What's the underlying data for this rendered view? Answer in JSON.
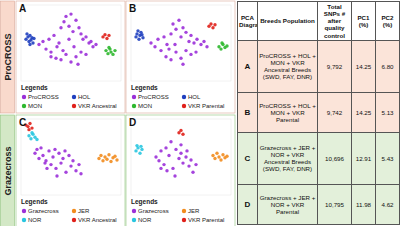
{
  "chart_data": [
    {
      "type": "scatter",
      "title": "A",
      "legend_title": "Legends",
      "legend": "bottom",
      "tick_labels": false,
      "marker": "circle",
      "xlim": [
        0,
        100
      ],
      "ylim": [
        0,
        100
      ],
      "series": [
        {
          "name": "ProCROSS",
          "color": "#9b30d9",
          "x": [
            18,
            22,
            25,
            28,
            30,
            33,
            36,
            40,
            43,
            45,
            48,
            50,
            52,
            55,
            58,
            60,
            62,
            65,
            68,
            70,
            72,
            75,
            35,
            40,
            45,
            50,
            55,
            42,
            38,
            60,
            65,
            30,
            48,
            53,
            57
          ],
          "values": [
            48,
            52,
            42,
            55,
            38,
            60,
            45,
            70,
            78,
            85,
            72,
            88,
            65,
            80,
            70,
            62,
            55,
            58,
            50,
            52,
            45,
            48,
            30,
            28,
            35,
            25,
            32,
            40,
            50,
            38,
            35,
            32,
            55,
            45,
            22
          ]
        },
        {
          "name": "HOL",
          "color": "#1f3fbf",
          "x": [
            5,
            7,
            8,
            9,
            10,
            11,
            12,
            6,
            9,
            13
          ],
          "values": [
            55,
            58,
            52,
            60,
            54,
            57,
            50,
            62,
            48,
            56
          ]
        },
        {
          "name": "MON",
          "color": "#2eb82e",
          "x": [
            85,
            87,
            89,
            90,
            92,
            94,
            88
          ],
          "values": [
            40,
            36,
            42,
            38,
            35,
            40,
            44
          ]
        },
        {
          "name": "VKR Ancestral",
          "color": "#e0201a",
          "x": [
            82,
            84,
            86,
            88
          ],
          "values": [
            58,
            61,
            56,
            60
          ]
        }
      ]
    },
    {
      "type": "scatter",
      "title": "B",
      "legend_title": "Legends",
      "legend": "bottom",
      "tick_labels": false,
      "marker": "circle",
      "xlim": [
        0,
        100
      ],
      "ylim": [
        0,
        100
      ],
      "series": [
        {
          "name": "ProCROSS",
          "color": "#9b30d9",
          "x": [
            20,
            24,
            27,
            30,
            33,
            36,
            40,
            42,
            45,
            48,
            50,
            52,
            55,
            58,
            60,
            63,
            66,
            70,
            73,
            76,
            35,
            40,
            45,
            50,
            55,
            60,
            44,
            38,
            65,
            52
          ],
          "values": [
            50,
            45,
            55,
            40,
            58,
            48,
            62,
            75,
            68,
            80,
            58,
            70,
            64,
            52,
            60,
            50,
            55,
            48,
            52,
            45,
            32,
            28,
            38,
            30,
            40,
            35,
            48,
            42,
            38,
            22
          ]
        },
        {
          "name": "HOL",
          "color": "#1f3fbf",
          "x": [
            5,
            6,
            8,
            9,
            10,
            12,
            7,
            11
          ],
          "values": [
            58,
            62,
            55,
            60,
            64,
            57,
            66,
            61
          ]
        },
        {
          "name": "MON",
          "color": "#2eb82e",
          "x": [
            88,
            90,
            92,
            94,
            96,
            91
          ],
          "values": [
            45,
            42,
            48,
            44,
            46,
            50
          ]
        },
        {
          "name": "VKR Parental",
          "color": "#e0201a",
          "x": [
            78,
            80,
            82,
            84
          ],
          "values": [
            72,
            75,
            70,
            74
          ]
        }
      ]
    },
    {
      "type": "scatter",
      "title": "C",
      "legend_title": "Legends",
      "legend": "bottom",
      "tick_labels": false,
      "marker": "circle",
      "xlim": [
        0,
        100
      ],
      "ylim": [
        0,
        100
      ],
      "series": [
        {
          "name": "Grazecross",
          "color": "#9b30d9",
          "x": [
            14,
            16,
            18,
            20,
            22,
            25,
            28,
            30,
            32,
            35,
            38,
            40,
            42,
            45,
            48,
            50,
            52,
            55,
            58,
            60,
            26,
            34,
            44,
            24,
            36
          ],
          "values": [
            55,
            60,
            48,
            62,
            52,
            45,
            58,
            40,
            50,
            35,
            55,
            42,
            48,
            30,
            52,
            38,
            45,
            32,
            40,
            28,
            35,
            60,
            58,
            42,
            25
          ]
        },
        {
          "name": "JER",
          "color": "#f28c1e",
          "x": [
            78,
            80,
            82,
            84,
            86,
            88,
            90,
            92,
            94,
            96
          ],
          "values": [
            48,
            52,
            45,
            50,
            47,
            53,
            44,
            49,
            51,
            46
          ]
        },
        {
          "name": "NOR",
          "color": "#29c6e0",
          "x": [
            8,
            10,
            12,
            14,
            16,
            11
          ],
          "values": [
            78,
            74,
            80,
            76,
            73,
            82
          ]
        },
        {
          "name": "VKR Ancestral",
          "color": "#e0201a",
          "x": [
            5,
            7,
            9,
            11,
            8
          ],
          "values": [
            92,
            90,
            94,
            88,
            86
          ]
        }
      ]
    },
    {
      "type": "scatter",
      "title": "D",
      "legend_title": "Legends",
      "legend": "bottom",
      "tick_labels": false,
      "marker": "circle",
      "xlim": [
        0,
        100
      ],
      "ylim": [
        0,
        100
      ],
      "series": [
        {
          "name": "Grazecross",
          "color": "#9b30d9",
          "x": [
            25,
            28,
            30,
            33,
            35,
            38,
            40,
            42,
            45,
            48,
            50,
            52,
            55,
            58,
            60,
            62,
            65,
            44,
            36,
            50,
            56,
            30
          ],
          "values": [
            50,
            45,
            58,
            40,
            62,
            52,
            70,
            35,
            60,
            48,
            55,
            42,
            50,
            38,
            46,
            30,
            40,
            25,
            32,
            66,
            58,
            35
          ]
        },
        {
          "name": "JER",
          "color": "#f28c1e",
          "x": [
            82,
            84,
            86,
            88,
            90,
            92,
            94,
            96
          ],
          "values": [
            52,
            48,
            55,
            50,
            46,
            53,
            49,
            51
          ]
        },
        {
          "name": "NOR",
          "color": "#29c6e0",
          "x": [
            5,
            7,
            9,
            11,
            6,
            10
          ],
          "values": [
            58,
            62,
            55,
            60,
            65,
            64
          ]
        },
        {
          "name": "VKR Parental",
          "color": "#e0201a",
          "x": [
            48,
            50,
            52
          ],
          "values": [
            82,
            85,
            80
          ]
        }
      ]
    }
  ],
  "row_labels": [
    "ProCROSS",
    "Grazecross"
  ],
  "table": {
    "header": [
      "PCA Diagram",
      "Breeds Population",
      "Total SNPs # after quality control",
      "PC1 (%)",
      "PC2 (%)"
    ],
    "rows": [
      [
        "A",
        "ProCROSS + HOL + MON + VKR Ancestral Breeds (SWD, FAY, DNR)",
        "9,792",
        "14.25",
        "6.80"
      ],
      [
        "B",
        "ProCROSS + HOL + MON + VKR Parental",
        "9,742",
        "14.25",
        "5.13"
      ],
      [
        "C",
        "Grazecross + JER + NOR + VKR Ancestral Breeds (SWD, FAY, DNR)",
        "10,696",
        "12.91",
        "5.43"
      ],
      [
        "D",
        "Grazecross + JER + NOR + VKR Parental",
        "10,795",
        "11.98",
        "4.62"
      ]
    ]
  }
}
